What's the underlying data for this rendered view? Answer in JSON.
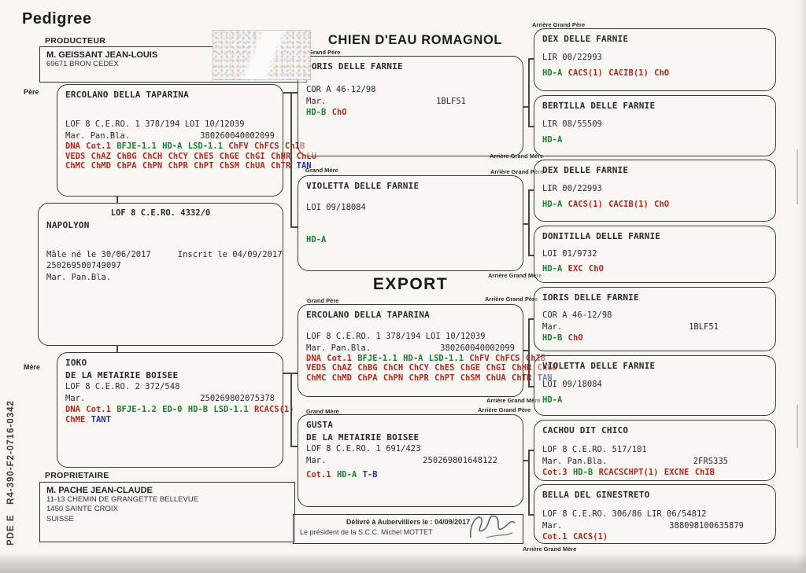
{
  "header": {
    "doc_title": "Pedigree",
    "breed_title": "CHIEN D'EAU ROMAGNOL",
    "export_title": "EXPORT",
    "side_code": "PDE E   R4-390-F2-0716-0342"
  },
  "labels": {
    "producteur": "PRODUCTEUR",
    "proprietaire": "PROPRIETAIRE",
    "pere": "Père",
    "mere": "Mère",
    "grand_pere": "Grand Père",
    "grand_mere": "Grand Mère",
    "arriere_grand_pere": "Arrière Grand Père",
    "arriere_grand_mere": "Arrière Grand Mère"
  },
  "producteur": {
    "name": "M. GEISSANT JEAN-LOUIS",
    "address": "69671 BRON CEDEX"
  },
  "proprietaire": {
    "name": "M. PACHE JEAN-CLAUDE",
    "address1": "11-13 CHEMIN DE GRANGETTE BELLEVUE",
    "address2": "1450 SAINTE CROIX",
    "address3": "SUISSE"
  },
  "subject": {
    "reg": "LOF 8 C.E.RO. 4332/0",
    "name": "NAPOLYON",
    "birth": "Mâle né le 30/06/2017",
    "inscrit": "Inscrit le 04/09/2017",
    "chip": "250269500749097",
    "mar": "Mar. Pan.Bla."
  },
  "delivery": {
    "line1": "Délivré à Aubervilliers le : 04/09/2017",
    "line2": "Le président de la S.C.C. Michel MOTTET"
  },
  "colors": {
    "result_red": "#b02a1c",
    "result_green": "#1e7d32",
    "result_blue": "#27339b"
  },
  "ancestors": {
    "pere": {
      "name": "ERCOLANO DELLA TAPARINA",
      "reg": "LOF 8 C.E.RO. 1 378/194 LOI 10/12039",
      "mar": "Mar. Pan.Bla.",
      "chip": "380260040002099",
      "dna": [
        [
          {
            "t": "DNA",
            "c": "r"
          },
          {
            "t": "Cot.1",
            "c": "r"
          },
          {
            "t": "BFJE-1.1",
            "c": "g"
          },
          {
            "t": "HD-A",
            "c": "g"
          },
          {
            "t": "LSD-1.1",
            "c": "g"
          },
          {
            "t": "ChFV",
            "c": "r"
          },
          {
            "t": "ChFCS",
            "c": "r"
          },
          {
            "t": "ChIB",
            "c": "r"
          }
        ],
        [
          {
            "t": "VEDS",
            "c": "r"
          },
          {
            "t": "ChAZ",
            "c": "r"
          },
          {
            "t": "ChBG",
            "c": "r"
          },
          {
            "t": "ChCH",
            "c": "r"
          },
          {
            "t": "ChCY",
            "c": "r"
          },
          {
            "t": "ChES",
            "c": "r"
          },
          {
            "t": "ChGE",
            "c": "r"
          },
          {
            "t": "ChGI",
            "c": "r"
          },
          {
            "t": "ChHR",
            "c": "r"
          },
          {
            "t": "ChLU",
            "c": "r"
          }
        ],
        [
          {
            "t": "ChMC",
            "c": "r"
          },
          {
            "t": "ChMD",
            "c": "r"
          },
          {
            "t": "ChPA",
            "c": "r"
          },
          {
            "t": "ChPN",
            "c": "r"
          },
          {
            "t": "ChPR",
            "c": "r"
          },
          {
            "t": "ChPT",
            "c": "r"
          },
          {
            "t": "ChSM",
            "c": "r"
          },
          {
            "t": "ChUA",
            "c": "r"
          },
          {
            "t": "ChTR",
            "c": "r"
          },
          {
            "t": "TAN",
            "c": "b"
          }
        ]
      ]
    },
    "mere": {
      "name": "IOKO",
      "name2": "DE LA METAIRIE BOISEE",
      "reg": "LOF 8 C.E.RO. 2 372/548",
      "mar": "Mar.",
      "chip": "250269802075378",
      "dna": [
        [
          {
            "t": "DNA",
            "c": "r"
          },
          {
            "t": "Cot.1",
            "c": "r"
          },
          {
            "t": "BFJE-1.2",
            "c": "g"
          },
          {
            "t": "ED-0",
            "c": "g"
          },
          {
            "t": "HD-B",
            "c": "g"
          },
          {
            "t": "LSD-1.1",
            "c": "g"
          },
          {
            "t": "RCACS(1)",
            "c": "r"
          }
        ],
        [
          {
            "t": "ChME",
            "c": "r"
          },
          {
            "t": "TANT",
            "c": "b"
          }
        ]
      ]
    },
    "gp1": {
      "name": "IORIS DELLE FARNIE",
      "reg": "COR A 46-12/98",
      "mar": "Mar.",
      "tattoo": "1BLF51",
      "res": [
        {
          "t": "HD-B",
          "c": "g"
        },
        {
          "t": "ChO",
          "c": "r"
        }
      ]
    },
    "gm1": {
      "name": "VIOLETTA DELLE FARNIE",
      "reg": "LOI 09/18084",
      "res": [
        {
          "t": "HD-A",
          "c": "g"
        }
      ]
    },
    "gm2": {
      "name": "GUSTA",
      "name2": "DE LA METAIRIE BOISEE",
      "reg": "LOF 8 C.E.RO. 1 691/423",
      "mar": "Mar.",
      "chip": "250269801648122",
      "res": [
        {
          "t": "Cot.1",
          "c": "r"
        },
        {
          "t": "HD-A",
          "c": "g"
        },
        {
          "t": "T-B",
          "c": "b"
        }
      ]
    },
    "r1": {
      "name": "DEX DELLE FARNIE",
      "reg": "LIR 00/22993",
      "res": [
        {
          "t": "HD-A",
          "c": "g"
        },
        {
          "t": "CACS(1)",
          "c": "r"
        },
        {
          "t": "CACIB(1)",
          "c": "r"
        },
        {
          "t": "ChO",
          "c": "r"
        }
      ]
    },
    "r2": {
      "name": "BERTILLA DELLE FARNIE",
      "reg": "LIR 08/55509",
      "res": [
        {
          "t": "HD-A",
          "c": "g"
        }
      ]
    },
    "r3": {
      "name": "DEX DELLE FARNIE",
      "reg": "LIR 00/22993",
      "res": [
        {
          "t": "HD-A",
          "c": "g"
        },
        {
          "t": "CACS(1)",
          "c": "r"
        },
        {
          "t": "CACIB(1)",
          "c": "r"
        },
        {
          "t": "ChO",
          "c": "r"
        }
      ]
    },
    "r4": {
      "name": "DONITILLA DELLE FARNIE",
      "reg": "LOI 01/9732",
      "res": [
        {
          "t": "HD-A",
          "c": "g"
        },
        {
          "t": "EXC",
          "c": "r"
        },
        {
          "t": "ChO",
          "c": "r"
        }
      ]
    },
    "r5": {
      "name": "IORIS DELLE FARNIE",
      "reg": "COR A 46-12/98",
      "mar": "Mar.",
      "tattoo": "1BLF51",
      "res": [
        {
          "t": "HD-B",
          "c": "g"
        },
        {
          "t": "ChO",
          "c": "r"
        }
      ]
    },
    "r6": {
      "name": "VIOLETTA DELLE FARNIE",
      "reg": "LOI 09/18084",
      "res": [
        {
          "t": "HD-A",
          "c": "g"
        }
      ]
    },
    "r7": {
      "name": "CACHOU DIT CHICO",
      "reg": "LOF 8 C.E.RO. 517/101",
      "mar": "Mar. Pan.Bla.",
      "chip": "2FRS335",
      "res": [
        {
          "t": "Cot.3",
          "c": "r"
        },
        {
          "t": "HD-B",
          "c": "g"
        },
        {
          "t": "RCACSCHPT(1)",
          "c": "r"
        },
        {
          "t": "EXCNE",
          "c": "r"
        },
        {
          "t": "ChIB",
          "c": "r"
        }
      ]
    },
    "r8": {
      "name": "BELLA DEL GINESTRETO",
      "reg": "LOF 8 C.E.RO. 306/86 LIR 06/54812",
      "mar": "Mar.",
      "chip": "388098100635879",
      "res": [
        {
          "t": "Cot.1",
          "c": "r"
        },
        {
          "t": "CACS(1)",
          "c": "r"
        }
      ]
    }
  }
}
